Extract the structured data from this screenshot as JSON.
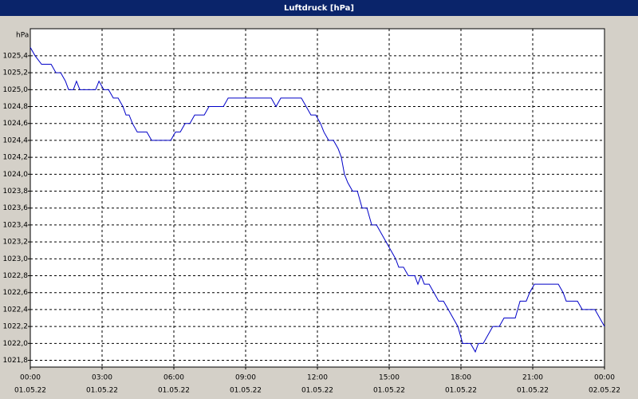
{
  "chart_data": {
    "type": "line",
    "title": "Luftdruck [hPa]",
    "y_label": "hPa",
    "grid": true,
    "color": "#0000c8",
    "xlim": [
      0,
      24
    ],
    "ylim": [
      1021.72,
      1025.72
    ],
    "yticks": [
      {
        "value": 1021.8,
        "label": "1021,8"
      },
      {
        "value": 1022.0,
        "label": "1022,0"
      },
      {
        "value": 1022.2,
        "label": "1022,2"
      },
      {
        "value": 1022.4,
        "label": "1022,4"
      },
      {
        "value": 1022.6,
        "label": "1022,6"
      },
      {
        "value": 1022.8,
        "label": "1022,8"
      },
      {
        "value": 1023.0,
        "label": "1023,0"
      },
      {
        "value": 1023.2,
        "label": "1023,2"
      },
      {
        "value": 1023.4,
        "label": "1023,4"
      },
      {
        "value": 1023.6,
        "label": "1023,6"
      },
      {
        "value": 1023.8,
        "label": "1023,8"
      },
      {
        "value": 1024.0,
        "label": "1024,0"
      },
      {
        "value": 1024.2,
        "label": "1024,2"
      },
      {
        "value": 1024.4,
        "label": "1024,4"
      },
      {
        "value": 1024.6,
        "label": "1024,6"
      },
      {
        "value": 1024.8,
        "label": "1024,8"
      },
      {
        "value": 1025.0,
        "label": "1025,0"
      },
      {
        "value": 1025.2,
        "label": "1025,2"
      },
      {
        "value": 1025.4,
        "label": "1025,4"
      }
    ],
    "xticks": [
      {
        "value": 0,
        "label": [
          "00:00",
          "01.05.22"
        ]
      },
      {
        "value": 3,
        "label": [
          "03:00",
          "01.05.22"
        ]
      },
      {
        "value": 6,
        "label": [
          "06:00",
          "01.05.22"
        ]
      },
      {
        "value": 9,
        "label": [
          "09:00",
          "01.05.22"
        ]
      },
      {
        "value": 12,
        "label": [
          "12:00",
          "01.05.22"
        ]
      },
      {
        "value": 15,
        "label": [
          "15:00",
          "01.05.22"
        ]
      },
      {
        "value": 18,
        "label": [
          "18:00",
          "01.05.22"
        ]
      },
      {
        "value": 21,
        "label": [
          "21:00",
          "01.05.22"
        ]
      },
      {
        "value": 24,
        "label": [
          "00:00",
          "02.05.22"
        ]
      }
    ],
    "x": [
      0,
      0.2,
      0.47,
      0.87,
      1.07,
      1.27,
      1.47,
      1.6,
      1.8,
      1.93,
      2.07,
      2.73,
      2.87,
      3.07,
      3.27,
      3.47,
      3.67,
      3.87,
      4,
      4.13,
      4.27,
      4.47,
      4.87,
      5.07,
      5.87,
      6.07,
      6.27,
      6.47,
      6.67,
      6.87,
      7.27,
      7.47,
      8.07,
      8.27,
      10.07,
      10.27,
      10.47,
      11.33,
      11.53,
      11.73,
      11.93,
      12.13,
      12.27,
      12.47,
      12.67,
      12.87,
      13,
      13.13,
      13.27,
      13.47,
      13.67,
      13.87,
      14.07,
      14.27,
      14.47,
      14.67,
      14.87,
      15.07,
      15.27,
      15.4,
      15.6,
      15.8,
      16.07,
      16.2,
      16.33,
      16.47,
      16.67,
      16.87,
      17.07,
      17.27,
      17.47,
      17.67,
      17.87,
      18.07,
      18.4,
      18.6,
      18.73,
      18.93,
      19.13,
      19.33,
      19.6,
      19.8,
      20.27,
      20.47,
      20.73,
      20.87,
      21.07,
      22.07,
      22.27,
      22.4,
      22.87,
      23.07,
      23.6,
      24
    ],
    "values": [
      1025.5,
      1025.4,
      1025.3,
      1025.3,
      1025.2,
      1025.2,
      1025.1,
      1025.0,
      1025.0,
      1025.1,
      1025.0,
      1025.0,
      1025.1,
      1025.0,
      1025.0,
      1024.9,
      1024.9,
      1024.8,
      1024.7,
      1024.7,
      1024.6,
      1024.5,
      1024.5,
      1024.4,
      1024.4,
      1024.5,
      1024.5,
      1024.6,
      1024.6,
      1024.7,
      1024.7,
      1024.8,
      1024.8,
      1024.9,
      1024.9,
      1024.8,
      1024.9,
      1024.9,
      1024.8,
      1024.7,
      1024.7,
      1024.6,
      1024.5,
      1024.4,
      1024.4,
      1024.3,
      1024.2,
      1024.0,
      1023.9,
      1023.8,
      1023.8,
      1023.6,
      1023.6,
      1023.4,
      1023.4,
      1023.3,
      1023.2,
      1023.1,
      1023.0,
      1022.9,
      1022.9,
      1022.8,
      1022.8,
      1022.7,
      1022.8,
      1022.7,
      1022.7,
      1022.6,
      1022.5,
      1022.5,
      1022.4,
      1022.3,
      1022.2,
      1022.0,
      1022.0,
      1021.9,
      1022.0,
      1022.0,
      1022.1,
      1022.2,
      1022.2,
      1022.3,
      1022.3,
      1022.5,
      1022.5,
      1022.6,
      1022.7,
      1022.7,
      1022.6,
      1022.5,
      1022.5,
      1022.4,
      1022.4,
      1022.2
    ]
  }
}
